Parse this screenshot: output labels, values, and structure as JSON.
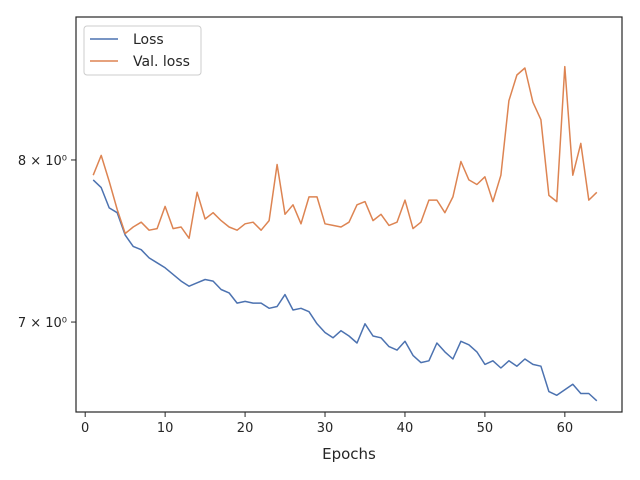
{
  "chart_data": {
    "type": "line",
    "xlabel": "Epochs",
    "ylabel": "",
    "y_scale": "log",
    "grid": false,
    "xlim": [
      -1.15,
      67.15
    ],
    "ylim": [
      6.5,
      9.0
    ],
    "x_ticks": [
      0,
      10,
      20,
      30,
      40,
      50,
      60
    ],
    "x_tick_labels": [
      "0",
      "10",
      "20",
      "30",
      "40",
      "50",
      "60"
    ],
    "y_ticks": [
      7,
      8
    ],
    "y_tick_labels": [
      "7 × 10⁰",
      "8 × 10⁰"
    ],
    "legend": {
      "placement": "top-left"
    },
    "x": [
      1,
      2,
      3,
      4,
      5,
      6,
      7,
      8,
      9,
      10,
      11,
      12,
      13,
      14,
      15,
      16,
      17,
      18,
      19,
      20,
      21,
      22,
      23,
      24,
      25,
      26,
      27,
      28,
      29,
      30,
      31,
      32,
      33,
      34,
      35,
      36,
      37,
      38,
      39,
      40,
      41,
      42,
      43,
      44,
      45,
      46,
      47,
      48,
      49,
      50,
      51,
      52,
      53,
      54,
      55,
      56,
      57,
      58,
      59,
      60,
      61,
      62,
      63,
      64
    ],
    "series": [
      {
        "name": "Loss",
        "color": "#4c72b0",
        "values": [
          7.87,
          7.82,
          7.69,
          7.66,
          7.52,
          7.45,
          7.43,
          7.38,
          7.35,
          7.32,
          7.28,
          7.24,
          7.21,
          7.23,
          7.25,
          7.24,
          7.19,
          7.17,
          7.11,
          7.12,
          7.11,
          7.11,
          7.08,
          7.09,
          7.16,
          7.07,
          7.08,
          7.06,
          6.99,
          6.94,
          6.91,
          6.95,
          6.92,
          6.88,
          6.99,
          6.92,
          6.91,
          6.86,
          6.84,
          6.89,
          6.81,
          6.77,
          6.78,
          6.88,
          6.83,
          6.79,
          6.89,
          6.87,
          6.83,
          6.76,
          6.78,
          6.74,
          6.78,
          6.75,
          6.79,
          6.76,
          6.75,
          6.61,
          6.59,
          6.62,
          6.65,
          6.6,
          6.6,
          6.56
        ]
      },
      {
        "name": "Val. loss",
        "color": "#dd8452",
        "values": [
          7.9,
          8.03,
          7.86,
          7.68,
          7.53,
          7.57,
          7.6,
          7.55,
          7.56,
          7.7,
          7.56,
          7.57,
          7.5,
          7.79,
          7.62,
          7.66,
          7.61,
          7.57,
          7.55,
          7.59,
          7.6,
          7.55,
          7.61,
          7.97,
          7.65,
          7.71,
          7.59,
          7.76,
          7.76,
          7.59,
          7.58,
          7.57,
          7.6,
          7.71,
          7.73,
          7.61,
          7.65,
          7.58,
          7.6,
          7.74,
          7.56,
          7.6,
          7.74,
          7.74,
          7.66,
          7.76,
          7.99,
          7.87,
          7.84,
          7.89,
          7.73,
          7.9,
          8.4,
          8.58,
          8.63,
          8.39,
          8.27,
          7.77,
          7.73,
          8.64,
          7.9,
          8.11,
          7.74,
          7.79
        ]
      }
    ]
  }
}
